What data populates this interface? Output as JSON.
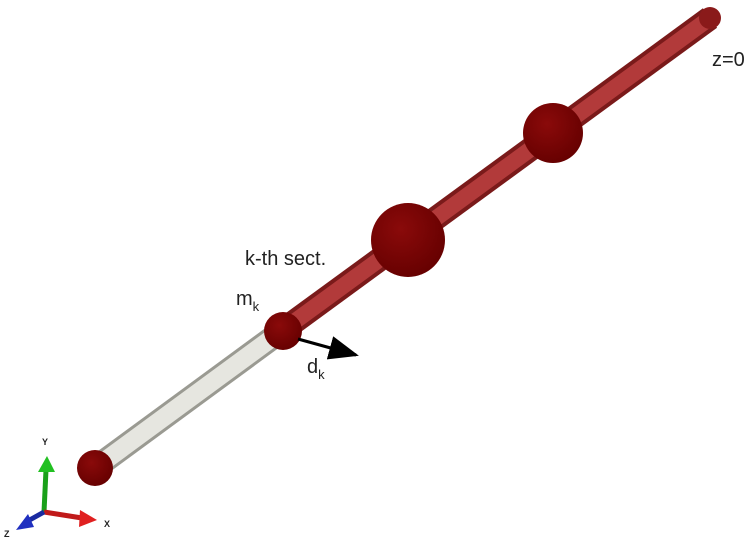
{
  "labels": {
    "origin": "z=0",
    "section": "k-th sect.",
    "mass": {
      "base": "m",
      "sub": "k"
    },
    "displacement": {
      "base": "d",
      "sub": "k"
    }
  },
  "axes": {
    "x": "X",
    "y": "Y",
    "z": "Z"
  }
}
